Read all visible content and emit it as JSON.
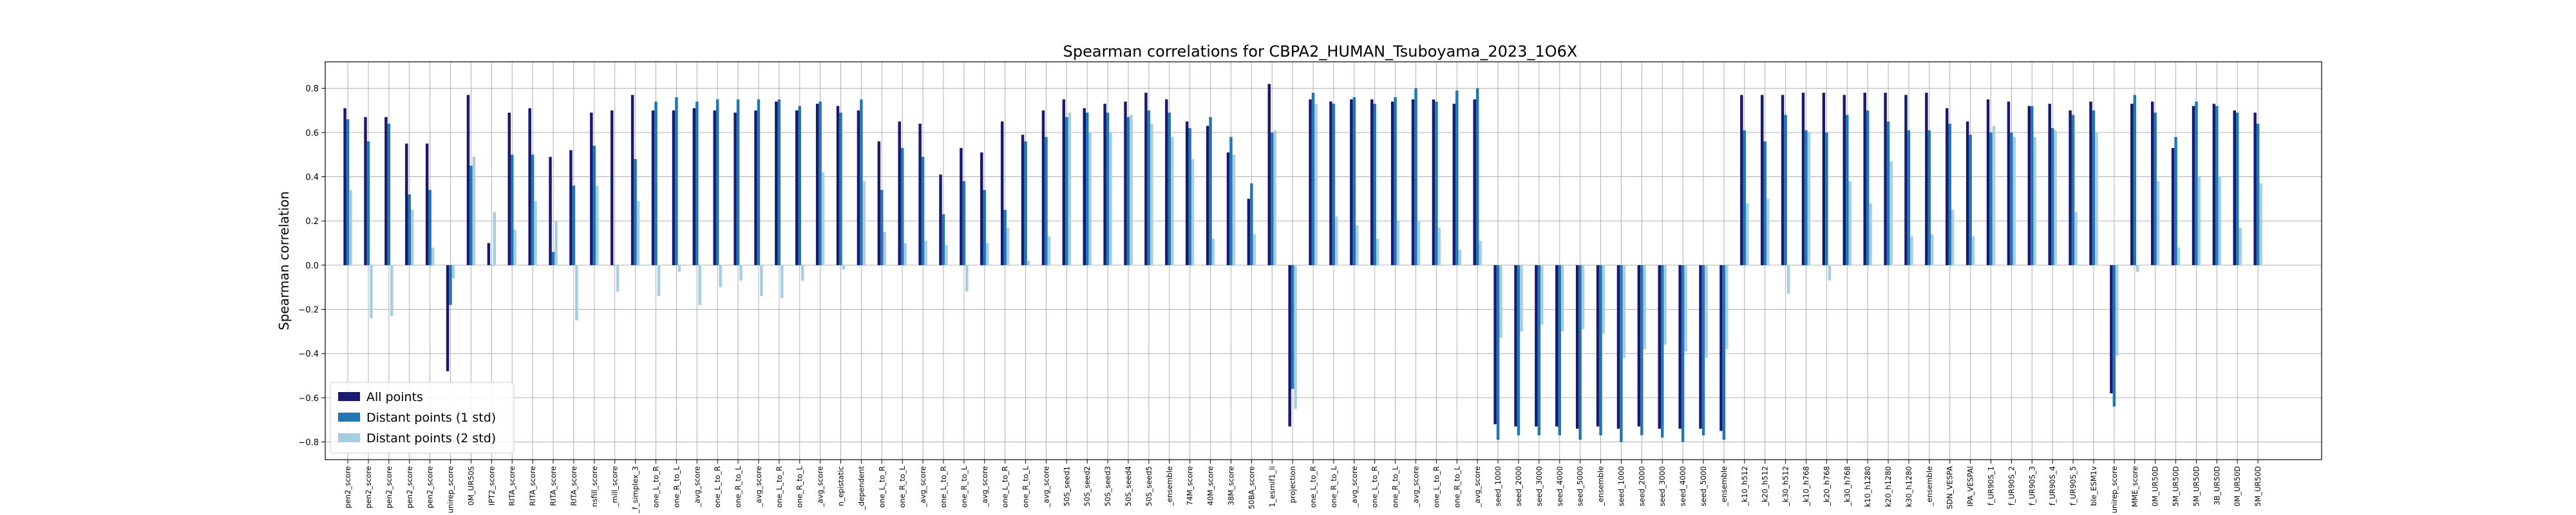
{
  "chart_data": {
    "type": "bar",
    "title": "Spearman correlations for CBPA2_HUMAN_Tsuboyama_2023_1O6X",
    "xlabel": "",
    "ylabel": "Spearman correlation",
    "ylim": [
      -0.88,
      0.92
    ],
    "yticks": [
      -0.8,
      -0.6,
      -0.4,
      -0.2,
      0.0,
      0.2,
      0.4,
      0.6,
      0.8
    ],
    "ytick_labels": [
      "−0.8",
      "−0.6",
      "−0.4",
      "−0.2",
      "0.0",
      "0.2",
      "0.4",
      "0.6",
      "0.8"
    ],
    "grid": true,
    "legend_position": "lower-left",
    "colors": [
      "#191970",
      "#1f78b4",
      "#a6cee3"
    ],
    "categories": [
      "pen2_score",
      "pen2_score",
      "pen2_score",
      "pen2_score",
      "pen2_score",
      "unirep_score",
      "0M_UR50S",
      "IPT2_score",
      "RITA_score",
      "RITA_score",
      "RITA_score",
      "RITA_score",
      "nsfill_score",
      "_mill_score",
      "_f_simplex_3",
      "one_L_to_R",
      "one_R_to_L",
      "_avg_score",
      "one_L_to_R",
      "one_R_to_L",
      "_avg_score",
      "one_L_to_R",
      "one_R_to_L",
      "_avg_score",
      "n_epistatic",
      "_dependent",
      "one_L_to_R",
      "one_R_to_L",
      "_avg_score",
      "one_L_to_R",
      "one_R_to_L",
      "_avg_score",
      "one_L_to_R",
      "one_R_to_L",
      "_avg_score",
      "50S_seed1",
      "50S_seed2",
      "50S_seed3",
      "50S_seed4",
      "50S_seed5",
      "_ensemble",
      "74M_score",
      "40M_score",
      "38M_score",
      "50BA_score",
      "1_esmif1_li",
      "projection",
      "one_L_to_R",
      "one_R_to_L",
      "_avg_score",
      "one_L_to_R",
      "one_R_to_L",
      "_avg_score",
      "one_L_to_R",
      "one_R_to_L",
      "_avg_score",
      "seed_1000",
      "seed_2000",
      "seed_3000",
      "seed_4000",
      "seed_5000",
      "_ensemble",
      "seed_1000",
      "seed_2000",
      "seed_3000",
      "seed_4000",
      "seed_5000",
      "_ensemble",
      "_k10_h512",
      "_k20_h512",
      "_k30_h512",
      "_k10_h768",
      "_k20_h768",
      "_k30_h768",
      "k10_h1280",
      "k20_h1280",
      "k30_h1280",
      "_ensemble",
      "SDN_VESPA",
      "IPA_VESPAl",
      "f_UR90S_1",
      "f_UR90S_2",
      "f_UR90S_3",
      "f_UR90S_4",
      "f_UR90S_5",
      "ble_ESM1v",
      "unirep_score",
      "MME_score",
      "0M_UR50D",
      "5M_UR50D",
      "5M_UR50D",
      "3B_UR50D",
      "0M_UR50D",
      "5M_UR50D"
    ],
    "series": [
      {
        "name": "All points",
        "values": [
          0.71,
          0.67,
          0.67,
          0.55,
          0.55,
          -0.48,
          0.77,
          0.1,
          0.69,
          0.71,
          0.49,
          0.52,
          0.69,
          0.7,
          0.77,
          0.7,
          0.7,
          0.71,
          0.7,
          0.69,
          0.7,
          0.74,
          0.7,
          0.73,
          0.72,
          0.7,
          0.56,
          0.65,
          0.64,
          0.41,
          0.53,
          0.51,
          0.65,
          0.59,
          0.7,
          0.75,
          0.71,
          0.73,
          0.74,
          0.78,
          0.75,
          0.65,
          0.63,
          0.51,
          0.3,
          0.82,
          -0.73,
          0.75,
          0.74,
          0.75,
          0.75,
          0.74,
          0.75,
          0.75,
          0.73,
          0.75,
          -0.72,
          -0.73,
          -0.73,
          -0.73,
          -0.74,
          -0.73,
          -0.74,
          -0.73,
          -0.74,
          -0.74,
          -0.74,
          -0.75,
          0.77,
          0.77,
          0.77,
          0.78,
          0.78,
          0.77,
          0.78,
          0.78,
          0.77,
          0.78,
          0.71,
          0.65,
          0.75,
          0.74,
          0.72,
          0.73,
          0.7,
          0.74,
          -0.58,
          0.73,
          0.74,
          0.53,
          0.72,
          0.73,
          0.7,
          0.69
        ]
      },
      {
        "name": "Distant points (1 std)",
        "values": [
          0.66,
          0.56,
          0.64,
          0.32,
          0.34,
          -0.18,
          0.45,
          0.0,
          0.5,
          0.5,
          0.06,
          0.36,
          0.54,
          0.0,
          0.48,
          0.74,
          0.76,
          0.74,
          0.75,
          0.75,
          0.75,
          0.75,
          0.72,
          0.74,
          0.69,
          0.75,
          0.34,
          0.53,
          0.49,
          0.23,
          0.38,
          0.34,
          0.25,
          0.56,
          0.58,
          0.67,
          0.69,
          0.69,
          0.67,
          0.7,
          0.69,
          0.62,
          0.67,
          0.58,
          0.37,
          0.6,
          -0.56,
          0.78,
          0.73,
          0.76,
          0.73,
          0.76,
          0.8,
          0.74,
          0.79,
          0.8,
          -0.79,
          -0.77,
          -0.77,
          -0.77,
          -0.79,
          -0.77,
          -0.8,
          -0.77,
          -0.78,
          -0.8,
          -0.77,
          -0.79,
          0.61,
          0.56,
          0.68,
          0.61,
          0.6,
          0.68,
          0.7,
          0.65,
          0.61,
          0.61,
          0.64,
          0.59,
          0.6,
          0.6,
          0.72,
          0.62,
          0.68,
          0.7,
          -0.64,
          0.77,
          0.69,
          0.58,
          0.74,
          0.72,
          0.69,
          0.64
        ]
      },
      {
        "name": "Distant points (2 std)",
        "values": [
          0.34,
          -0.24,
          -0.23,
          0.25,
          0.08,
          -0.06,
          0.49,
          0.24,
          0.16,
          0.29,
          0.2,
          -0.25,
          0.36,
          -0.12,
          0.29,
          -0.14,
          -0.03,
          -0.18,
          -0.1,
          -0.07,
          -0.14,
          -0.15,
          -0.07,
          0.42,
          -0.02,
          0.38,
          0.15,
          0.1,
          0.11,
          0.09,
          -0.12,
          0.1,
          0.17,
          0.02,
          0.13,
          0.69,
          0.6,
          0.6,
          0.68,
          0.64,
          0.58,
          0.48,
          0.12,
          0.5,
          0.14,
          0.61,
          -0.65,
          0.73,
          0.22,
          0.18,
          0.12,
          0.2,
          0.2,
          0.17,
          0.07,
          0.11,
          -0.33,
          -0.3,
          -0.27,
          -0.3,
          -0.29,
          -0.31,
          -0.42,
          -0.38,
          -0.36,
          -0.39,
          -0.42,
          -0.38,
          0.28,
          0.3,
          -0.13,
          0.6,
          -0.07,
          0.38,
          0.28,
          0.47,
          0.13,
          0.14,
          0.25,
          0.13,
          0.63,
          0.58,
          0.58,
          0.61,
          0.24,
          0.6,
          -0.41,
          -0.03,
          0.38,
          0.08,
          0.4,
          0.4,
          0.17,
          0.37
        ]
      }
    ]
  }
}
